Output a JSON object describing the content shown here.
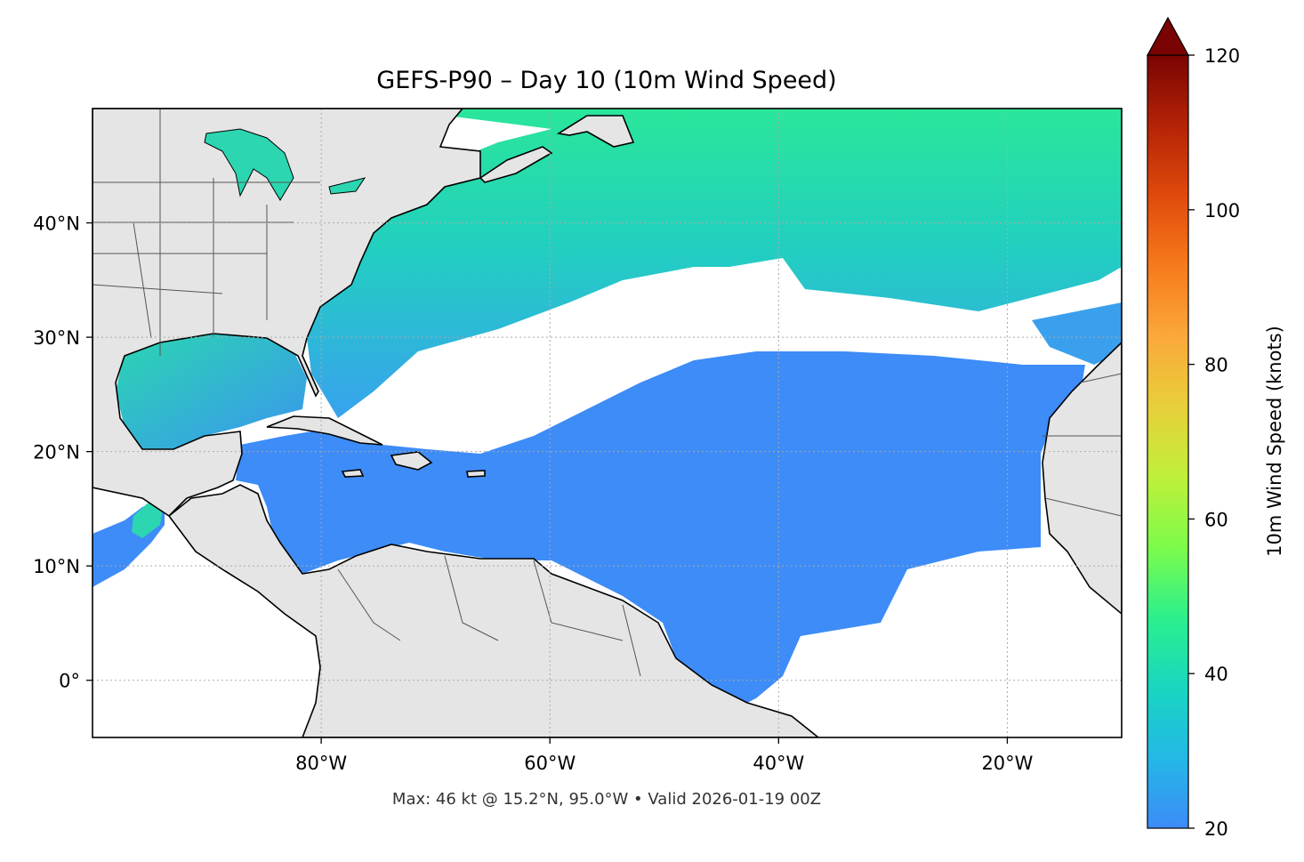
{
  "title": "GEFS-P90 – Day 10 (10m Wind Speed)",
  "footer": "Max: 46 kt @ 15.2°N, 95.0°W • Valid 2026-01-19 00Z",
  "map": {
    "extent": {
      "lon_min": -100,
      "lon_max": -10,
      "lat_min": -5,
      "lat_max": 50
    },
    "lon_ticks": [
      {
        "lon": -80,
        "label": "80°W"
      },
      {
        "lon": -60,
        "label": "60°W"
      },
      {
        "lon": -40,
        "label": "40°W"
      },
      {
        "lon": -20,
        "label": "20°W"
      }
    ],
    "lat_ticks": [
      {
        "lat": 40,
        "label": "40°N"
      },
      {
        "lat": 30,
        "label": "30°N"
      },
      {
        "lat": 20,
        "label": "20°N"
      },
      {
        "lat": 10,
        "label": "10°N"
      },
      {
        "lat": 0,
        "label": "0°"
      }
    ],
    "land_color": "#e5e5e5",
    "gridlines": true
  },
  "colorbar": {
    "label": "10m Wind Speed (knots)",
    "min": 20,
    "max": 120,
    "extend": "max",
    "ticks": [
      {
        "value": 20,
        "label": "20"
      },
      {
        "value": 40,
        "label": "40"
      },
      {
        "value": 60,
        "label": "60"
      },
      {
        "value": 80,
        "label": "80"
      },
      {
        "value": 100,
        "label": "100"
      },
      {
        "value": 120,
        "label": "120"
      }
    ],
    "colors": [
      "#3d8cf7",
      "#23b8e6",
      "#19d6c0",
      "#2cf08c",
      "#7dfb4a",
      "#bff03a",
      "#e8cf3a",
      "#fba83a",
      "#f77a1c",
      "#e04a0c",
      "#b42306",
      "#7a0403"
    ],
    "extend_color": "#7a0403"
  },
  "max_point": {
    "value_kt": 46,
    "lat": 15.2,
    "lon": -95.0
  }
}
